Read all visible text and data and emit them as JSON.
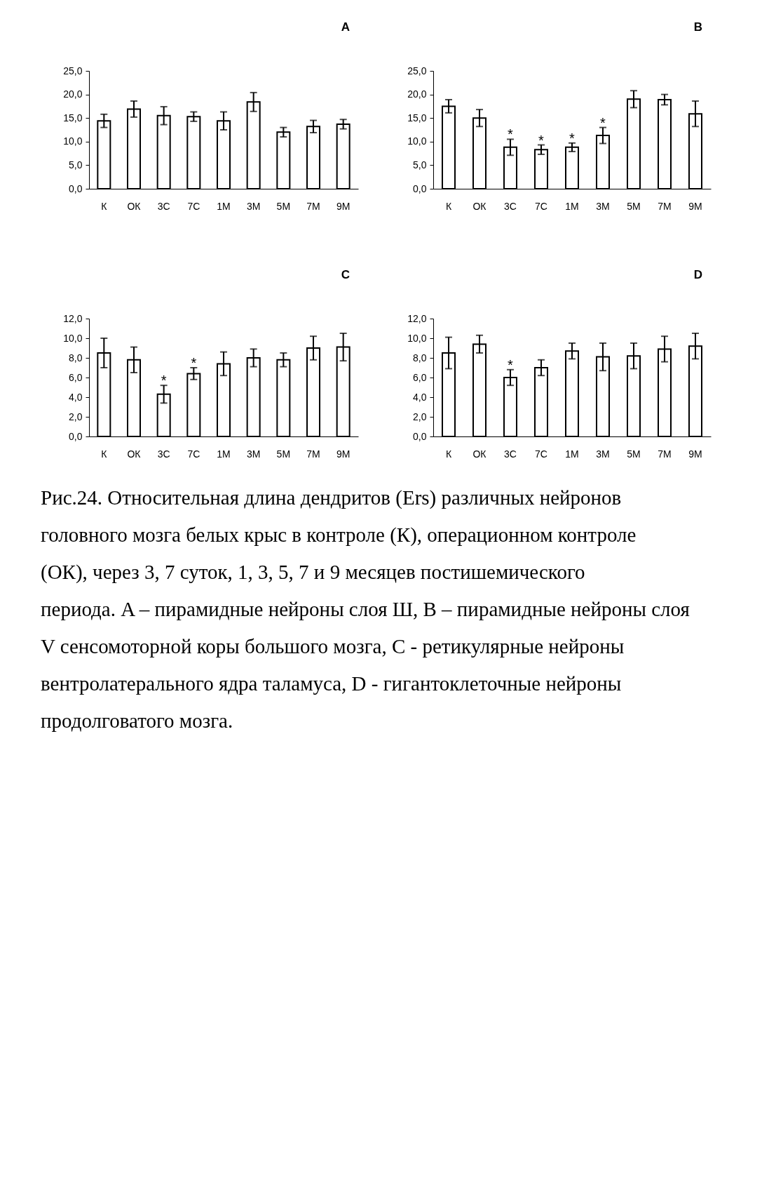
{
  "chart_data": [
    {
      "type": "bar",
      "title": "A",
      "categories": [
        "К",
        "ОК",
        "3С",
        "7С",
        "1М",
        "3М",
        "5М",
        "7М",
        "9М"
      ],
      "values": [
        14.4,
        16.9,
        15.5,
        15.3,
        14.4,
        18.4,
        12.0,
        13.2,
        13.7
      ],
      "errors": [
        1.4,
        1.7,
        1.9,
        1.0,
        1.9,
        2.0,
        1.0,
        1.3,
        1.0
      ],
      "color": "#ffffff",
      "ylim": [
        0,
        25
      ],
      "yticks": [
        {
          "value": 0,
          "label": "0,0"
        },
        {
          "value": 5,
          "label": "5,0"
        },
        {
          "value": 10,
          "label": "10,0"
        },
        {
          "value": 15,
          "label": "15,0"
        },
        {
          "value": 20,
          "label": "20,0"
        },
        {
          "value": 25,
          "label": "25,0"
        }
      ],
      "grid": false
    },
    {
      "type": "bar",
      "title": "B",
      "categories": [
        "К",
        "ОК",
        "3С",
        "7С",
        "1М",
        "3М",
        "5М",
        "7М",
        "9М"
      ],
      "values": [
        17.5,
        15.0,
        8.8,
        8.3,
        8.8,
        11.3,
        19.0,
        18.9,
        15.9
      ],
      "errors": [
        1.4,
        1.8,
        1.7,
        1.0,
        0.9,
        1.7,
        1.8,
        1.1,
        2.7
      ],
      "color": "#ffffff",
      "ylim": [
        0,
        25
      ],
      "yticks": [
        {
          "value": 0,
          "label": "0,0"
        },
        {
          "value": 5,
          "label": "5,0"
        },
        {
          "value": 10,
          "label": "10,0"
        },
        {
          "value": 15,
          "label": "15,0"
        },
        {
          "value": 20,
          "label": "20,0"
        },
        {
          "value": 25,
          "label": "25,0"
        }
      ],
      "grid": false,
      "annotations": [
        {
          "text": "*",
          "x": "3С",
          "y": 8.8
        },
        {
          "text": "*",
          "x": "7С",
          "y": 8.3
        },
        {
          "text": "*",
          "x": "1М",
          "y": 8.8
        },
        {
          "text": "*",
          "x": "3М",
          "y": 11.3
        }
      ]
    },
    {
      "type": "bar",
      "title": "C",
      "categories": [
        "К",
        "ОК",
        "3С",
        "7С",
        "1М",
        "3М",
        "5М",
        "7М",
        "9М"
      ],
      "values": [
        8.5,
        7.8,
        4.3,
        6.4,
        7.4,
        8.0,
        7.8,
        9.0,
        9.1
      ],
      "errors": [
        1.5,
        1.3,
        0.9,
        0.6,
        1.2,
        0.9,
        0.7,
        1.2,
        1.4
      ],
      "color": "#ffffff",
      "ylim": [
        0,
        12
      ],
      "yticks": [
        {
          "value": 0,
          "label": "0,0"
        },
        {
          "value": 2,
          "label": "2,0"
        },
        {
          "value": 4,
          "label": "4,0"
        },
        {
          "value": 6,
          "label": "6,0"
        },
        {
          "value": 8,
          "label": "8,0"
        },
        {
          "value": 10,
          "label": "10,0"
        },
        {
          "value": 12,
          "label": "12,0"
        }
      ],
      "grid": false,
      "annotations": [
        {
          "text": "*",
          "x": "3С",
          "y": 4.3
        },
        {
          "text": "*",
          "x": "7С",
          "y": 6.4
        }
      ]
    },
    {
      "type": "bar",
      "title": "D",
      "categories": [
        "К",
        "ОК",
        "3С",
        "7С",
        "1М",
        "3М",
        "5М",
        "7М",
        "9М"
      ],
      "values": [
        8.5,
        9.4,
        6.0,
        7.0,
        8.7,
        8.1,
        8.2,
        8.9,
        9.2
      ],
      "errors": [
        1.6,
        0.9,
        0.8,
        0.8,
        0.8,
        1.4,
        1.3,
        1.3,
        1.3
      ],
      "color": "#ffffff",
      "ylim": [
        0,
        12
      ],
      "yticks": [
        {
          "value": 0,
          "label": "0,0"
        },
        {
          "value": 2,
          "label": "2,0"
        },
        {
          "value": 4,
          "label": "4,0"
        },
        {
          "value": 6,
          "label": "6,0"
        },
        {
          "value": 8,
          "label": "8,0"
        },
        {
          "value": 10,
          "label": "10,0"
        },
        {
          "value": 12,
          "label": "12,0"
        }
      ],
      "grid": false,
      "annotations": [
        {
          "text": "*",
          "x": "3С",
          "y": 6.0
        }
      ]
    },
    {
      "type": "other",
      "annotations": [
        "Рис.24. Относительная длина дендритов (Ers) различных нейронов головного мозга белых крыс в контроле (К), операционном контроле (ОК), через 3, 7 суток, 1, 3, 5, 7 и 9 месяцев постишемического периода. A – пирамидные нейроны слоя Ш, B – пирамидные нейроны слоя V сенсомоторной коры большого мозга, C - ретикулярные нейроны вентролатерального ядра таламуса, D - гигантоклеточные нейроны продолговатого мозга."
      ]
    }
  ]
}
